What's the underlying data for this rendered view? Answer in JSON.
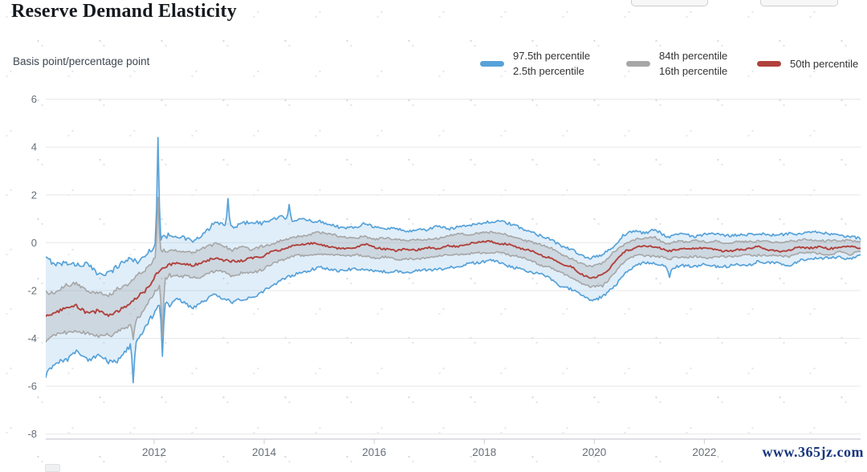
{
  "page": {
    "title": "Reserve Demand Elasticity",
    "watermark": "www.365jz.com"
  },
  "legend": {
    "items": [
      {
        "color": "#57a2d9",
        "lines": [
          "97.5th percentile",
          "2.5th percentile"
        ]
      },
      {
        "color": "#a6a6a6",
        "lines": [
          "84th percentile",
          "16th percentile"
        ]
      },
      {
        "color": "#b0423c",
        "lines": [
          "50th percentile"
        ]
      }
    ]
  },
  "chart_data": {
    "type": "line",
    "title": "Reserve Demand Elasticity",
    "xlabel": "",
    "ylabel": "Basis point/percentage point",
    "grid": "horizontal",
    "legend_position": "top-right",
    "xlim": [
      2010.03,
      2024.84
    ],
    "ylim": [
      -8.21,
      6.66
    ],
    "x_ticks": [
      2012,
      2014,
      2016,
      2018,
      2020,
      2022
    ],
    "y_ticks": [
      6,
      4,
      2,
      0,
      -2,
      -4,
      -6,
      -8
    ],
    "axis_color": "#c9ced3",
    "grid_color": "#e7e7e7",
    "tick_label_color": "#676f77",
    "series": [
      {
        "name": "97.5th percentile",
        "color": "#57a2d9",
        "width": 1.7,
        "jitter": 0.11,
        "points": [
          [
            2010.0,
            -0.6
          ],
          [
            2010.3,
            -0.9
          ],
          [
            2010.6,
            -0.85
          ],
          [
            2010.9,
            -1.15
          ],
          [
            2011.2,
            -1.3
          ],
          [
            2011.5,
            -0.9
          ],
          [
            2011.8,
            -0.5
          ],
          [
            2012.1,
            0.2
          ],
          [
            2012.4,
            0.25
          ],
          [
            2012.7,
            0.05
          ],
          [
            2013.0,
            0.5
          ],
          [
            2013.15,
            0.9
          ],
          [
            2013.4,
            0.55
          ],
          [
            2013.7,
            0.8
          ],
          [
            2014.0,
            0.9
          ],
          [
            2014.3,
            1.0
          ],
          [
            2014.6,
            0.95
          ],
          [
            2015.0,
            0.9
          ],
          [
            2015.4,
            0.65
          ],
          [
            2015.8,
            0.75
          ],
          [
            2016.2,
            0.6
          ],
          [
            2016.6,
            0.55
          ],
          [
            2017.0,
            0.62
          ],
          [
            2017.4,
            0.66
          ],
          [
            2017.8,
            0.8
          ],
          [
            2018.1,
            0.9
          ],
          [
            2018.45,
            0.75
          ],
          [
            2018.8,
            0.5
          ],
          [
            2019.1,
            0.25
          ],
          [
            2019.4,
            -0.1
          ],
          [
            2019.7,
            -0.45
          ],
          [
            2019.95,
            -0.6
          ],
          [
            2020.15,
            -0.5
          ],
          [
            2020.35,
            -0.1
          ],
          [
            2020.55,
            0.28
          ],
          [
            2020.8,
            0.45
          ],
          [
            2021.1,
            0.5
          ],
          [
            2021.35,
            0.22
          ],
          [
            2021.6,
            0.38
          ],
          [
            2021.9,
            0.35
          ],
          [
            2022.2,
            0.3
          ],
          [
            2022.6,
            0.28
          ],
          [
            2023.0,
            0.38
          ],
          [
            2023.4,
            0.28
          ],
          [
            2023.8,
            0.35
          ],
          [
            2024.2,
            0.32
          ],
          [
            2024.5,
            0.3
          ],
          [
            2024.83,
            0.22
          ]
        ]
      },
      {
        "name": "84th percentile",
        "color": "#a6a6a6",
        "width": 1.6,
        "jitter": 0.08,
        "points": [
          [
            2010.0,
            -2.1
          ],
          [
            2010.3,
            -1.95
          ],
          [
            2010.6,
            -1.75
          ],
          [
            2010.9,
            -2.0
          ],
          [
            2011.2,
            -2.1
          ],
          [
            2011.5,
            -1.65
          ],
          [
            2011.8,
            -1.3
          ],
          [
            2012.1,
            -0.45
          ],
          [
            2012.4,
            -0.3
          ],
          [
            2012.7,
            -0.45
          ],
          [
            2013.0,
            -0.15
          ],
          [
            2013.15,
            -0.05
          ],
          [
            2013.4,
            -0.3
          ],
          [
            2013.7,
            -0.25
          ],
          [
            2014.0,
            -0.1
          ],
          [
            2014.3,
            0.1
          ],
          [
            2014.6,
            0.3
          ],
          [
            2015.0,
            0.4
          ],
          [
            2015.4,
            0.22
          ],
          [
            2015.8,
            0.3
          ],
          [
            2016.2,
            0.15
          ],
          [
            2016.6,
            0.12
          ],
          [
            2017.0,
            0.2
          ],
          [
            2017.4,
            0.28
          ],
          [
            2017.8,
            0.38
          ],
          [
            2018.1,
            0.45
          ],
          [
            2018.45,
            0.35
          ],
          [
            2018.8,
            0.1
          ],
          [
            2019.1,
            -0.15
          ],
          [
            2019.4,
            -0.45
          ],
          [
            2019.7,
            -0.78
          ],
          [
            2019.95,
            -1.0
          ],
          [
            2020.15,
            -0.88
          ],
          [
            2020.35,
            -0.45
          ],
          [
            2020.55,
            -0.02
          ],
          [
            2020.8,
            0.15
          ],
          [
            2021.1,
            0.2
          ],
          [
            2021.35,
            -0.05
          ],
          [
            2021.6,
            0.1
          ],
          [
            2021.9,
            0.08
          ],
          [
            2022.2,
            0.05
          ],
          [
            2022.6,
            0.02
          ],
          [
            2023.0,
            0.12
          ],
          [
            2023.4,
            0.02
          ],
          [
            2023.8,
            0.1
          ],
          [
            2024.2,
            0.1
          ],
          [
            2024.5,
            0.12
          ],
          [
            2024.83,
            0.05
          ]
        ]
      },
      {
        "name": "50th percentile",
        "color": "#b0423c",
        "width": 1.9,
        "jitter": 0.07,
        "points": [
          [
            2010.0,
            -3.2
          ],
          [
            2010.3,
            -2.85
          ],
          [
            2010.6,
            -2.7
          ],
          [
            2010.9,
            -2.95
          ],
          [
            2011.2,
            -3.0
          ],
          [
            2011.5,
            -2.55
          ],
          [
            2011.8,
            -2.1
          ],
          [
            2012.1,
            -1.1
          ],
          [
            2012.4,
            -0.8
          ],
          [
            2012.7,
            -0.95
          ],
          [
            2013.0,
            -0.7
          ],
          [
            2013.15,
            -0.6
          ],
          [
            2013.4,
            -0.85
          ],
          [
            2013.7,
            -0.75
          ],
          [
            2014.0,
            -0.55
          ],
          [
            2014.3,
            -0.3
          ],
          [
            2014.6,
            -0.1
          ],
          [
            2015.0,
            -0.05
          ],
          [
            2015.4,
            -0.2
          ],
          [
            2015.8,
            -0.1
          ],
          [
            2016.2,
            -0.25
          ],
          [
            2016.6,
            -0.3
          ],
          [
            2017.0,
            -0.2
          ],
          [
            2017.4,
            -0.15
          ],
          [
            2017.8,
            -0.05
          ],
          [
            2018.1,
            0.05
          ],
          [
            2018.45,
            -0.05
          ],
          [
            2018.8,
            -0.3
          ],
          [
            2019.1,
            -0.55
          ],
          [
            2019.4,
            -0.85
          ],
          [
            2019.7,
            -1.2
          ],
          [
            2019.95,
            -1.45
          ],
          [
            2020.15,
            -1.3
          ],
          [
            2020.35,
            -0.85
          ],
          [
            2020.55,
            -0.4
          ],
          [
            2020.8,
            -0.2
          ],
          [
            2021.1,
            -0.15
          ],
          [
            2021.35,
            -0.4
          ],
          [
            2021.6,
            -0.25
          ],
          [
            2021.9,
            -0.25
          ],
          [
            2022.2,
            -0.3
          ],
          [
            2022.6,
            -0.3
          ],
          [
            2023.0,
            -0.2
          ],
          [
            2023.4,
            -0.3
          ],
          [
            2023.8,
            -0.2
          ],
          [
            2024.2,
            -0.2
          ],
          [
            2024.5,
            -0.15
          ],
          [
            2024.83,
            -0.2
          ]
        ]
      },
      {
        "name": "16th percentile",
        "color": "#a6a6a6",
        "width": 1.6,
        "jitter": 0.08,
        "points": [
          [
            2010.0,
            -4.1
          ],
          [
            2010.3,
            -3.8
          ],
          [
            2010.6,
            -3.6
          ],
          [
            2010.9,
            -3.9
          ],
          [
            2011.2,
            -3.95
          ],
          [
            2011.5,
            -3.45
          ],
          [
            2011.8,
            -2.9
          ],
          [
            2012.1,
            -1.7
          ],
          [
            2012.4,
            -1.35
          ],
          [
            2012.7,
            -1.5
          ],
          [
            2013.0,
            -1.25
          ],
          [
            2013.15,
            -1.15
          ],
          [
            2013.4,
            -1.4
          ],
          [
            2013.7,
            -1.3
          ],
          [
            2014.0,
            -1.05
          ],
          [
            2014.3,
            -0.75
          ],
          [
            2014.6,
            -0.5
          ],
          [
            2015.0,
            -0.42
          ],
          [
            2015.4,
            -0.6
          ],
          [
            2015.8,
            -0.5
          ],
          [
            2016.2,
            -0.65
          ],
          [
            2016.6,
            -0.7
          ],
          [
            2017.0,
            -0.6
          ],
          [
            2017.4,
            -0.55
          ],
          [
            2017.8,
            -0.45
          ],
          [
            2018.1,
            -0.35
          ],
          [
            2018.45,
            -0.45
          ],
          [
            2018.8,
            -0.7
          ],
          [
            2019.1,
            -0.95
          ],
          [
            2019.4,
            -1.25
          ],
          [
            2019.7,
            -1.6
          ],
          [
            2019.95,
            -1.9
          ],
          [
            2020.15,
            -1.75
          ],
          [
            2020.35,
            -1.3
          ],
          [
            2020.55,
            -0.8
          ],
          [
            2020.8,
            -0.55
          ],
          [
            2021.1,
            -0.5
          ],
          [
            2021.35,
            -0.75
          ],
          [
            2021.6,
            -0.6
          ],
          [
            2021.9,
            -0.58
          ],
          [
            2022.2,
            -0.62
          ],
          [
            2022.6,
            -0.6
          ],
          [
            2023.0,
            -0.5
          ],
          [
            2023.4,
            -0.58
          ],
          [
            2023.8,
            -0.48
          ],
          [
            2024.2,
            -0.46
          ],
          [
            2024.5,
            -0.42
          ],
          [
            2024.83,
            -0.42
          ]
        ]
      },
      {
        "name": "2.5th percentile",
        "color": "#57a2d9",
        "width": 1.7,
        "jitter": 0.11,
        "points": [
          [
            2010.0,
            -5.8
          ],
          [
            2010.3,
            -4.9
          ],
          [
            2010.6,
            -4.55
          ],
          [
            2010.9,
            -4.85
          ],
          [
            2011.2,
            -5.0
          ],
          [
            2011.5,
            -4.5
          ],
          [
            2011.8,
            -3.8
          ],
          [
            2012.1,
            -2.7
          ],
          [
            2012.4,
            -2.4
          ],
          [
            2012.7,
            -2.6
          ],
          [
            2013.0,
            -2.35
          ],
          [
            2013.15,
            -2.2
          ],
          [
            2013.4,
            -2.5
          ],
          [
            2013.7,
            -2.3
          ],
          [
            2014.0,
            -1.95
          ],
          [
            2014.3,
            -1.6
          ],
          [
            2014.6,
            -1.25
          ],
          [
            2015.0,
            -1.05
          ],
          [
            2015.4,
            -1.2
          ],
          [
            2015.8,
            -1.05
          ],
          [
            2016.2,
            -1.15
          ],
          [
            2016.6,
            -1.2
          ],
          [
            2017.0,
            -1.1
          ],
          [
            2017.4,
            -1.0
          ],
          [
            2017.8,
            -0.9
          ],
          [
            2018.1,
            -0.8
          ],
          [
            2018.45,
            -0.9
          ],
          [
            2018.8,
            -1.2
          ],
          [
            2019.1,
            -1.45
          ],
          [
            2019.4,
            -1.8
          ],
          [
            2019.7,
            -2.1
          ],
          [
            2019.95,
            -2.4
          ],
          [
            2020.15,
            -2.25
          ],
          [
            2020.35,
            -1.85
          ],
          [
            2020.55,
            -1.25
          ],
          [
            2020.8,
            -0.95
          ],
          [
            2021.1,
            -0.85
          ],
          [
            2021.35,
            -1.1
          ],
          [
            2021.6,
            -0.95
          ],
          [
            2021.9,
            -0.95
          ],
          [
            2022.2,
            -0.98
          ],
          [
            2022.6,
            -0.95
          ],
          [
            2023.0,
            -0.82
          ],
          [
            2023.4,
            -0.9
          ],
          [
            2023.8,
            -0.78
          ],
          [
            2024.2,
            -0.72
          ],
          [
            2024.5,
            -0.66
          ],
          [
            2024.83,
            -0.6
          ]
        ]
      }
    ],
    "bands": [
      {
        "upper": "97.5th percentile",
        "lower": "2.5th percentile",
        "fill": "rgba(137,189,232,0.26)"
      },
      {
        "upper": "84th percentile",
        "lower": "16th percentile",
        "fill": "rgba(158,158,163,0.28)"
      }
    ],
    "spikes": [
      {
        "series": "2.5th percentile",
        "x": 2011.62,
        "value": -5.85
      },
      {
        "series": "16th percentile",
        "x": 2011.62,
        "value": -4.05
      },
      {
        "series": "97.5th percentile",
        "x": 2012.07,
        "value": 4.4
      },
      {
        "series": "84th percentile",
        "x": 2012.07,
        "value": 1.9
      },
      {
        "series": "2.5th percentile",
        "x": 2012.16,
        "value": -4.75
      },
      {
        "series": "16th percentile",
        "x": 2012.16,
        "value": -3.9
      },
      {
        "series": "97.5th percentile",
        "x": 2013.33,
        "value": 1.85
      },
      {
        "series": "97.5th percentile",
        "x": 2014.45,
        "value": 1.6
      },
      {
        "series": "97.5th percentile",
        "x": 2017.72,
        "value": 0.72
      },
      {
        "series": "2.5th percentile",
        "x": 2021.38,
        "value": -1.45
      }
    ]
  }
}
